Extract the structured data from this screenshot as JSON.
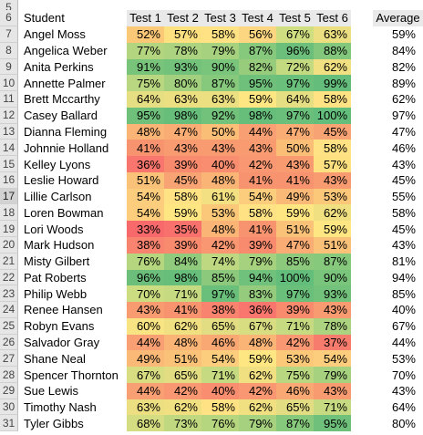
{
  "top_row_number": "5",
  "header": {
    "row_number": "6",
    "student": "Student",
    "tests": [
      "Test 1",
      "Test 2",
      "Test 3",
      "Test 4",
      "Test 5",
      "Test 6"
    ],
    "average": "Average"
  },
  "selected_row_number": "17",
  "rows": [
    {
      "n": "7",
      "name": "Angel Moss",
      "scores": [
        "52%",
        "57%",
        "58%",
        "56%",
        "67%",
        "63%"
      ],
      "avg": "59%",
      "colors": [
        "#fbc878",
        "#fde080",
        "#fee283",
        "#fcd680",
        "#d0de82",
        "#ecdf81"
      ]
    },
    {
      "n": "8",
      "name": "Angelica Weber",
      "scores": [
        "77%",
        "78%",
        "79%",
        "87%",
        "96%",
        "88%"
      ],
      "avg": "84%",
      "colors": [
        "#b3d57f",
        "#acd37f",
        "#a6d17e",
        "#86c87c",
        "#6cbf7b",
        "#82c77c"
      ]
    },
    {
      "n": "9",
      "name": "Anita Perkins",
      "scores": [
        "91%",
        "93%",
        "90%",
        "82%",
        "72%",
        "62%"
      ],
      "avg": "82%",
      "colors": [
        "#78c47b",
        "#73c27b",
        "#7ac57c",
        "#98cc7d",
        "#c3da81",
        "#f1e082"
      ]
    },
    {
      "n": "10",
      "name": "Annette Palmer",
      "scores": [
        "75%",
        "80%",
        "87%",
        "95%",
        "97%",
        "99%"
      ],
      "avg": "89%",
      "colors": [
        "#b9d680",
        "#a3d07e",
        "#86c87c",
        "#6ec07b",
        "#6abf7b",
        "#64bd7a"
      ]
    },
    {
      "n": "11",
      "name": "Brett Mccarthy",
      "scores": [
        "64%",
        "63%",
        "63%",
        "59%",
        "64%",
        "58%"
      ],
      "avg": "62%",
      "colors": [
        "#e6de82",
        "#ecdf81",
        "#ecdf81",
        "#fee683",
        "#e6de82",
        "#fee283"
      ]
    },
    {
      "n": "12",
      "name": "Casey Ballard",
      "scores": [
        "95%",
        "98%",
        "92%",
        "98%",
        "97%",
        "100%"
      ],
      "avg": "97%",
      "colors": [
        "#6ec07b",
        "#67be7b",
        "#73c27b",
        "#67be7b",
        "#6abf7b",
        "#63be7b"
      ]
    },
    {
      "n": "13",
      "name": "Dianna Fleming",
      "scores": [
        "48%",
        "47%",
        "50%",
        "44%",
        "47%",
        "45%"
      ],
      "avg": "47%",
      "colors": [
        "#fab576",
        "#f9ad75",
        "#fabe77",
        "#f89f73",
        "#f9ad75",
        "#f8a373"
      ]
    },
    {
      "n": "14",
      "name": "Johnnie Holland",
      "scores": [
        "41%",
        "43%",
        "43%",
        "43%",
        "50%",
        "58%"
      ],
      "avg": "46%",
      "colors": [
        "#f7936f",
        "#f89b71",
        "#f89b71",
        "#f89b71",
        "#fabe77",
        "#fee283"
      ]
    },
    {
      "n": "15",
      "name": "Kelley Lyons",
      "scores": [
        "36%",
        "39%",
        "40%",
        "42%",
        "43%",
        "57%"
      ],
      "avg": "43%",
      "colors": [
        "#f8766d",
        "#f88a6e",
        "#f88e6f",
        "#f89771",
        "#f89b71",
        "#fde080"
      ]
    },
    {
      "n": "16",
      "name": "Leslie Howard",
      "scores": [
        "51%",
        "45%",
        "48%",
        "41%",
        "41%",
        "43%"
      ],
      "avg": "45%",
      "colors": [
        "#fac278",
        "#f8a373",
        "#fab576",
        "#f7936f",
        "#f7936f",
        "#f89b71"
      ]
    },
    {
      "n": "17",
      "name": "Lillie Carlson",
      "scores": [
        "54%",
        "58%",
        "61%",
        "54%",
        "49%",
        "53%"
      ],
      "avg": "55%",
      "colors": [
        "#fccd7c",
        "#fee283",
        "#f3e082",
        "#fccd7c",
        "#fab976",
        "#fbc87a"
      ]
    },
    {
      "n": "18",
      "name": "Loren Bowman",
      "scores": [
        "54%",
        "59%",
        "53%",
        "58%",
        "59%",
        "62%"
      ],
      "avg": "58%",
      "colors": [
        "#fccd7c",
        "#fee683",
        "#fbc87a",
        "#fee283",
        "#fee683",
        "#f1e082"
      ]
    },
    {
      "n": "19",
      "name": "Lori Woods",
      "scores": [
        "33%",
        "35%",
        "48%",
        "41%",
        "51%",
        "59%"
      ],
      "avg": "45%",
      "colors": [
        "#f8696b",
        "#f8716c",
        "#fab576",
        "#f7936f",
        "#fac278",
        "#fee683"
      ]
    },
    {
      "n": "20",
      "name": "Mark Hudson",
      "scores": [
        "38%",
        "39%",
        "42%",
        "39%",
        "47%",
        "51%"
      ],
      "avg": "43%",
      "colors": [
        "#f8836e",
        "#f88a6e",
        "#f89771",
        "#f88a6e",
        "#f9ad75",
        "#fac278"
      ]
    },
    {
      "n": "21",
      "name": "Misty Gilbert",
      "scores": [
        "76%",
        "84%",
        "74%",
        "79%",
        "85%",
        "87%"
      ],
      "avg": "81%",
      "colors": [
        "#b6d57f",
        "#90ca7d",
        "#bdd880",
        "#a6d17e",
        "#8dc97c",
        "#86c87c"
      ]
    },
    {
      "n": "22",
      "name": "Pat Roberts",
      "scores": [
        "96%",
        "98%",
        "85%",
        "94%",
        "100%",
        "90%"
      ],
      "avg": "94%",
      "colors": [
        "#6cbf7b",
        "#67be7b",
        "#8dc97c",
        "#70c17b",
        "#63be7b",
        "#7ac57c"
      ]
    },
    {
      "n": "23",
      "name": "Philip Webb",
      "scores": [
        "70%",
        "71%",
        "97%",
        "83%",
        "97%",
        "93%"
      ],
      "avg": "85%",
      "colors": [
        "#cbdc81",
        "#c6db81",
        "#6abf7b",
        "#95cb7d",
        "#6abf7b",
        "#73c27b"
      ]
    },
    {
      "n": "24",
      "name": "Renee Hansen",
      "scores": [
        "43%",
        "41%",
        "38%",
        "36%",
        "39%",
        "43%"
      ],
      "avg": "40%",
      "colors": [
        "#f89b71",
        "#f7936f",
        "#f8836e",
        "#f8766d",
        "#f88a6e",
        "#f89b71"
      ]
    },
    {
      "n": "25",
      "name": "Robyn Evans",
      "scores": [
        "60%",
        "62%",
        "65%",
        "67%",
        "71%",
        "78%"
      ],
      "avg": "67%",
      "colors": [
        "#f8e483",
        "#f1e082",
        "#e2dd82",
        "#d9dd82",
        "#c6db81",
        "#acd37f"
      ]
    },
    {
      "n": "26",
      "name": "Salvador Gray",
      "scores": [
        "44%",
        "48%",
        "46%",
        "48%",
        "42%",
        "37%"
      ],
      "avg": "44%",
      "colors": [
        "#f89f73",
        "#fab576",
        "#f9a873",
        "#fab576",
        "#f89771",
        "#f87c6d"
      ]
    },
    {
      "n": "27",
      "name": "Shane Neal",
      "scores": [
        "49%",
        "51%",
        "54%",
        "59%",
        "53%",
        "54%"
      ],
      "avg": "53%",
      "colors": [
        "#fab976",
        "#fac278",
        "#fccd7c",
        "#fee683",
        "#fbc87a",
        "#fccd7c"
      ]
    },
    {
      "n": "28",
      "name": "Spencer Thornton",
      "scores": [
        "67%",
        "65%",
        "71%",
        "62%",
        "75%",
        "79%"
      ],
      "avg": "70%",
      "colors": [
        "#d9dd82",
        "#e2dd82",
        "#c6db81",
        "#f1e082",
        "#b9d680",
        "#a6d17e"
      ]
    },
    {
      "n": "29",
      "name": "Sue Lewis",
      "scores": [
        "44%",
        "42%",
        "40%",
        "42%",
        "46%",
        "43%"
      ],
      "avg": "43%",
      "colors": [
        "#f89f73",
        "#f89771",
        "#f88e6f",
        "#f89771",
        "#f9a873",
        "#f89b71"
      ]
    },
    {
      "n": "30",
      "name": "Timothy Nash",
      "scores": [
        "63%",
        "62%",
        "58%",
        "62%",
        "65%",
        "71%"
      ],
      "avg": "64%",
      "colors": [
        "#ecdf81",
        "#f1e082",
        "#fee283",
        "#f1e082",
        "#e2dd82",
        "#c6db81"
      ]
    },
    {
      "n": "31",
      "name": "Tyler Gibbs",
      "scores": [
        "68%",
        "73%",
        "76%",
        "79%",
        "87%",
        "95%"
      ],
      "avg": "80%",
      "colors": [
        "#d4dd82",
        "#c0d980",
        "#b6d57f",
        "#a6d17e",
        "#86c87c",
        "#6ec07b"
      ]
    }
  ]
}
